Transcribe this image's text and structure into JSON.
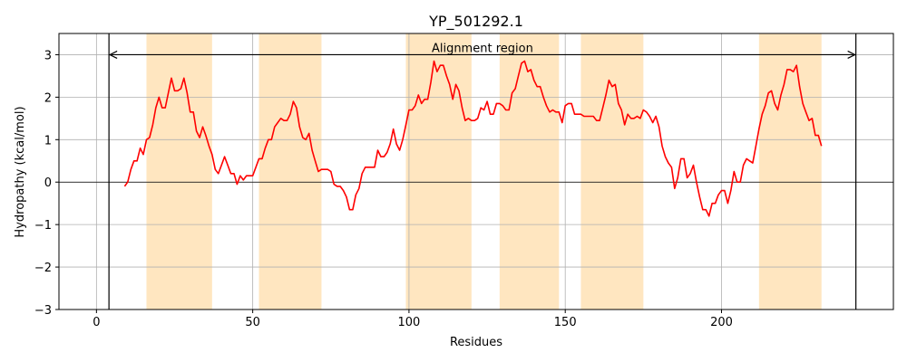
{
  "chart_data": {
    "type": "line",
    "title": "YP_501292.1",
    "xlabel": "Residues",
    "ylabel": "Hydropathy (kcal/mol)",
    "xlim": [
      -12,
      255
    ],
    "ylim": [
      -3,
      3.5
    ],
    "xticks": [
      0,
      50,
      100,
      150,
      200
    ],
    "yticks": [
      -3,
      -2,
      -1,
      0,
      1,
      2,
      3
    ],
    "grid": true,
    "colors": {
      "line": "#ff0000",
      "highlight": "#ffe6c0",
      "grid": "#b0b0b0",
      "frame": "#000000"
    },
    "annotation": {
      "text": "Alignment region",
      "x_start": 4,
      "x_end": 243,
      "y": 3.0
    },
    "boundary_lines": [
      4,
      243
    ],
    "highlight_regions": [
      [
        16,
        37
      ],
      [
        52,
        72
      ],
      [
        99,
        120
      ],
      [
        129,
        148
      ],
      [
        155,
        175
      ],
      [
        212,
        232
      ]
    ],
    "x": [
      9,
      10,
      11,
      12,
      13,
      14,
      15,
      16,
      17,
      18,
      19,
      20,
      21,
      22,
      23,
      24,
      25,
      26,
      27,
      28,
      29,
      30,
      31,
      32,
      33,
      34,
      35,
      36,
      37,
      38,
      39,
      40,
      41,
      42,
      43,
      44,
      45,
      46,
      47,
      48,
      49,
      50,
      51,
      52,
      53,
      54,
      55,
      56,
      57,
      58,
      59,
      60,
      61,
      62,
      63,
      64,
      65,
      66,
      67,
      68,
      69,
      70,
      71,
      72,
      73,
      74,
      75,
      76,
      77,
      78,
      79,
      80,
      81,
      82,
      83,
      84,
      85,
      86,
      87,
      88,
      89,
      90,
      91,
      92,
      93,
      94,
      95,
      96,
      97,
      98,
      99,
      100,
      101,
      102,
      103,
      104,
      105,
      106,
      107,
      108,
      109,
      110,
      111,
      112,
      113,
      114,
      115,
      116,
      117,
      118,
      119,
      120,
      121,
      122,
      123,
      124,
      125,
      126,
      127,
      128,
      129,
      130,
      131,
      132,
      133,
      134,
      135,
      136,
      137,
      138,
      139,
      140,
      141,
      142,
      143,
      144,
      145,
      146,
      147,
      148,
      149,
      150,
      151,
      152,
      153,
      154,
      155,
      156,
      157,
      158,
      159,
      160,
      161,
      162,
      163,
      164,
      165,
      166,
      167,
      168,
      169,
      170,
      171,
      172,
      173,
      174,
      175,
      176,
      177,
      178,
      179,
      180,
      181,
      182,
      183,
      184,
      185,
      186,
      187,
      188,
      189,
      190,
      191,
      192,
      193,
      194,
      195,
      196,
      197,
      198,
      199,
      200,
      201,
      202,
      203,
      204,
      205,
      206,
      207,
      208,
      209,
      210,
      211,
      212,
      213,
      214,
      215,
      216,
      217,
      218,
      219,
      220,
      221,
      222,
      223,
      224,
      225,
      226,
      227,
      228,
      229,
      230,
      231,
      232
    ],
    "y": [
      -0.1,
      0.0,
      0.3,
      0.5,
      0.5,
      0.8,
      0.65,
      1.0,
      1.05,
      1.35,
      1.75,
      2.0,
      1.75,
      1.75,
      2.1,
      2.45,
      2.15,
      2.15,
      2.2,
      2.45,
      2.1,
      1.65,
      1.65,
      1.2,
      1.05,
      1.3,
      1.1,
      0.85,
      0.65,
      0.3,
      0.2,
      0.4,
      0.6,
      0.4,
      0.2,
      0.2,
      -0.05,
      0.15,
      0.05,
      0.15,
      0.15,
      0.15,
      0.35,
      0.55,
      0.55,
      0.8,
      1.0,
      1.0,
      1.3,
      1.4,
      1.5,
      1.45,
      1.45,
      1.6,
      1.9,
      1.75,
      1.3,
      1.05,
      1.0,
      1.15,
      0.75,
      0.5,
      0.25,
      0.3,
      0.3,
      0.3,
      0.25,
      -0.05,
      -0.1,
      -0.1,
      -0.2,
      -0.35,
      -0.65,
      -0.65,
      -0.3,
      -0.15,
      0.2,
      0.35,
      0.35,
      0.35,
      0.35,
      0.75,
      0.6,
      0.6,
      0.7,
      0.9,
      1.25,
      0.9,
      0.75,
      1.0,
      1.35,
      1.7,
      1.7,
      1.8,
      2.05,
      1.85,
      1.95,
      1.95,
      2.35,
      2.85,
      2.6,
      2.75,
      2.75,
      2.5,
      2.3,
      1.95,
      2.3,
      2.15,
      1.75,
      1.45,
      1.5,
      1.45,
      1.45,
      1.5,
      1.75,
      1.7,
      1.9,
      1.6,
      1.6,
      1.85,
      1.85,
      1.8,
      1.7,
      1.7,
      2.1,
      2.2,
      2.5,
      2.8,
      2.85,
      2.6,
      2.65,
      2.4,
      2.25,
      2.25,
      2.0,
      1.8,
      1.65,
      1.7,
      1.65,
      1.65,
      1.4,
      1.8,
      1.85,
      1.85,
      1.6,
      1.6,
      1.6,
      1.55,
      1.55,
      1.55,
      1.55,
      1.45,
      1.45,
      1.75,
      2.05,
      2.4,
      2.25,
      2.3,
      1.85,
      1.7,
      1.35,
      1.6,
      1.5,
      1.5,
      1.55,
      1.5,
      1.7,
      1.65,
      1.55,
      1.4,
      1.55,
      1.3,
      0.85,
      0.6,
      0.45,
      0.35,
      -0.15,
      0.1,
      0.55,
      0.55,
      0.1,
      0.2,
      0.4,
      0.0,
      -0.35,
      -0.65,
      -0.65,
      -0.8,
      -0.5,
      -0.5,
      -0.3,
      -0.2,
      -0.2,
      -0.5,
      -0.2,
      0.25,
      0.0,
      0.0,
      0.4,
      0.55,
      0.5,
      0.45,
      0.85,
      1.25,
      1.6,
      1.8,
      2.1,
      2.15,
      1.85,
      1.7,
      2.05,
      2.3,
      2.65,
      2.65,
      2.6,
      2.75,
      2.25,
      1.85,
      1.65,
      1.45,
      1.5,
      1.1,
      1.1,
      0.85
    ]
  }
}
